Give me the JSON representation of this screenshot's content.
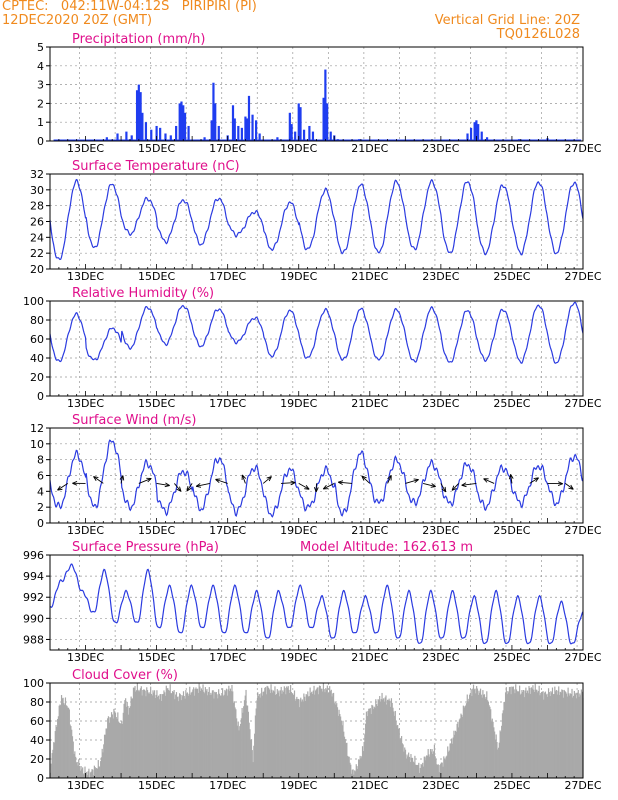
{
  "header": {
    "line1_left": "CPTEC:   042:11W-04:12S   PIRIPIRI (PI)",
    "line2_left": "12DEC2020 20Z (GMT)",
    "line1_right": "Vertical Grid Line: 20Z",
    "line2_right": "TQ0126L028"
  },
  "colors": {
    "accent": "#f08a1e",
    "title": "#e0108c",
    "series": "#2b3be0",
    "bars": "#1f3df0",
    "cloud": "#a9a9a9"
  },
  "x_axis": {
    "ticks": [
      "13DEC",
      "15DEC",
      "17DEC",
      "19DEC",
      "21DEC",
      "23DEC",
      "25DEC",
      "27DEC"
    ]
  },
  "chart_data": [
    {
      "type": "bar",
      "title": "Precipitation (mm/h)",
      "ylim": [
        0,
        5
      ],
      "yticks": [
        0,
        1,
        2,
        3,
        4,
        5
      ],
      "events": [
        [
          13.6,
          0.2
        ],
        [
          13.9,
          0.4
        ],
        [
          14.15,
          0.5
        ],
        [
          14.3,
          0.3
        ],
        [
          14.45,
          2.7
        ],
        [
          14.5,
          3.0
        ],
        [
          14.55,
          2.6
        ],
        [
          14.6,
          1.5
        ],
        [
          14.7,
          1.0
        ],
        [
          14.85,
          0.6
        ],
        [
          15.0,
          0.8
        ],
        [
          15.1,
          0.7
        ],
        [
          15.25,
          0.4
        ],
        [
          15.4,
          0.3
        ],
        [
          15.55,
          0.8
        ],
        [
          15.65,
          2.0
        ],
        [
          15.7,
          2.1
        ],
        [
          15.75,
          1.9
        ],
        [
          15.8,
          1.5
        ],
        [
          15.9,
          0.8
        ],
        [
          16.35,
          0.2
        ],
        [
          16.55,
          1.1
        ],
        [
          16.6,
          3.1
        ],
        [
          16.65,
          2.0
        ],
        [
          16.75,
          0.8
        ],
        [
          17.0,
          0.3
        ],
        [
          17.15,
          1.9
        ],
        [
          17.2,
          1.2
        ],
        [
          17.3,
          0.8
        ],
        [
          17.4,
          0.7
        ],
        [
          17.5,
          1.3
        ],
        [
          17.55,
          1.2
        ],
        [
          17.6,
          2.4
        ],
        [
          17.7,
          1.4
        ],
        [
          17.8,
          1.1
        ],
        [
          17.9,
          0.4
        ],
        [
          18.4,
          0.2
        ],
        [
          18.75,
          1.5
        ],
        [
          18.8,
          0.9
        ],
        [
          18.9,
          0.5
        ],
        [
          19.0,
          2.0
        ],
        [
          19.05,
          1.8
        ],
        [
          19.15,
          0.6
        ],
        [
          19.3,
          0.8
        ],
        [
          19.4,
          0.5
        ],
        [
          19.7,
          2.3
        ],
        [
          19.75,
          3.8
        ],
        [
          19.8,
          2.0
        ],
        [
          19.9,
          0.5
        ],
        [
          20.0,
          0.3
        ],
        [
          20.1,
          0.1
        ],
        [
          20.7,
          0.1
        ],
        [
          23.75,
          0.4
        ],
        [
          23.85,
          0.7
        ],
        [
          23.95,
          1.0
        ],
        [
          24.0,
          1.1
        ],
        [
          24.05,
          0.9
        ],
        [
          24.15,
          0.5
        ],
        [
          24.3,
          0.2
        ],
        [
          25.2,
          0.1
        ],
        [
          26.0,
          0.15
        ]
      ]
    },
    {
      "type": "line",
      "title": "Surface Temperature (nC)",
      "ylim": [
        20,
        32
      ],
      "yticks": [
        20,
        22,
        24,
        26,
        28,
        30,
        32
      ],
      "daily_max": [
        31.0,
        31.2,
        29.0,
        28.5,
        29.5,
        27.0,
        28.0,
        29.8,
        30.5,
        31.0,
        31.0,
        31.2,
        30.5,
        31.0,
        31.0,
        30.7
      ],
      "daily_min": [
        21.0,
        22.5,
        24.5,
        23.5,
        23.0,
        24.5,
        22.5,
        22.5,
        22.0,
        22.0,
        22.5,
        22.0,
        22.0,
        22.0,
        22.0,
        22.0
      ]
    },
    {
      "type": "line",
      "title": "Relative Humidity (%)",
      "ylim": [
        0,
        100
      ],
      "yticks": [
        0,
        20,
        40,
        60,
        80,
        100
      ],
      "daily_max": [
        92,
        65,
        93,
        95,
        95,
        80,
        90,
        90,
        92,
        90,
        93,
        90,
        90,
        95,
        98,
        100
      ],
      "daily_min": [
        36,
        37,
        50,
        55,
        52,
        58,
        42,
        40,
        38,
        38,
        36,
        35,
        38,
        36,
        35,
        35
      ]
    },
    {
      "type": "line",
      "title": "Surface Wind (m/s)",
      "ylim": [
        0,
        12
      ],
      "yticks": [
        0,
        2,
        4,
        6,
        8,
        10,
        12
      ],
      "daily_max": [
        8.0,
        11.0,
        8.0,
        6.0,
        8.5,
        7.0,
        7.0,
        6.0,
        9.0,
        8.0,
        7.5,
        7.5,
        7.0,
        7.0,
        8.0,
        10.0
      ],
      "daily_min": [
        2.0,
        2.0,
        2.0,
        1.5,
        1.8,
        1.5,
        1.0,
        2.0,
        1.0,
        2.5,
        2.5,
        2.5,
        2.0,
        2.5,
        2.5,
        2.5
      ]
    },
    {
      "type": "line",
      "title": "Surface Pressure (hPa)",
      "annotation": "Model Altitude: 162.613 m",
      "ylim": [
        987,
        996
      ],
      "yticks": [
        988,
        990,
        992,
        994,
        996
      ],
      "values": [
        991.0,
        993.5,
        995.0,
        992.5,
        990.5,
        994.5,
        989.5,
        992.5,
        989.5,
        994.5,
        989.0,
        993.0,
        988.5,
        993.0,
        989.0,
        993.0,
        988.5,
        993.0,
        988.5,
        992.5,
        988.0,
        992.5,
        989.0,
        993.0,
        989.0,
        992.0,
        988.0,
        992.5,
        988.5,
        992.0,
        988.5,
        993.0,
        988.0,
        992.5,
        987.5,
        992.5,
        988.0,
        992.5,
        988.0,
        992.0,
        987.5,
        992.5,
        987.5,
        992.0,
        987.5,
        992.0,
        987.5,
        991.5,
        987.5,
        990.5
      ]
    },
    {
      "type": "area",
      "title": "Cloud Cover (%)",
      "ylim": [
        0,
        100
      ],
      "yticks": [
        0,
        20,
        40,
        60,
        80,
        100
      ],
      "segments": [
        [
          12.0,
          10
        ],
        [
          12.1,
          40
        ],
        [
          12.3,
          85
        ],
        [
          12.5,
          75
        ],
        [
          12.7,
          20
        ],
        [
          12.9,
          8
        ],
        [
          13.1,
          5
        ],
        [
          13.4,
          15
        ],
        [
          13.6,
          60
        ],
        [
          13.8,
          70
        ],
        [
          14.0,
          55
        ],
        [
          14.1,
          85
        ],
        [
          14.2,
          70
        ],
        [
          14.35,
          95
        ],
        [
          14.6,
          92
        ],
        [
          14.9,
          90
        ],
        [
          15.1,
          85
        ],
        [
          15.3,
          95
        ],
        [
          15.6,
          85
        ],
        [
          15.9,
          90
        ],
        [
          16.2,
          95
        ],
        [
          16.5,
          90
        ],
        [
          16.8,
          88
        ],
        [
          17.1,
          95
        ],
        [
          17.3,
          50
        ],
        [
          17.5,
          90
        ],
        [
          17.7,
          20
        ],
        [
          17.8,
          85
        ],
        [
          18.1,
          95
        ],
        [
          18.4,
          90
        ],
        [
          18.7,
          95
        ],
        [
          19.0,
          80
        ],
        [
          19.3,
          90
        ],
        [
          19.6,
          95
        ],
        [
          19.9,
          92
        ],
        [
          20.2,
          60
        ],
        [
          20.4,
          20
        ],
        [
          20.5,
          5
        ],
        [
          20.6,
          10
        ],
        [
          20.8,
          30
        ],
        [
          20.9,
          70
        ],
        [
          21.1,
          75
        ],
        [
          21.3,
          85
        ],
        [
          21.6,
          80
        ],
        [
          21.8,
          50
        ],
        [
          22.0,
          25
        ],
        [
          22.2,
          20
        ],
        [
          22.4,
          10
        ],
        [
          22.6,
          25
        ],
        [
          22.8,
          30
        ],
        [
          22.9,
          10
        ],
        [
          23.0,
          15
        ],
        [
          23.1,
          20
        ],
        [
          23.3,
          40
        ],
        [
          23.5,
          60
        ],
        [
          23.7,
          80
        ],
        [
          23.9,
          95
        ],
        [
          24.1,
          90
        ],
        [
          24.3,
          85
        ],
        [
          24.6,
          30
        ],
        [
          24.8,
          90
        ],
        [
          25.0,
          95
        ],
        [
          25.3,
          90
        ],
        [
          25.6,
          95
        ],
        [
          25.9,
          88
        ],
        [
          26.2,
          92
        ],
        [
          26.5,
          90
        ],
        [
          26.8,
          88
        ],
        [
          27.0,
          90
        ]
      ]
    }
  ]
}
